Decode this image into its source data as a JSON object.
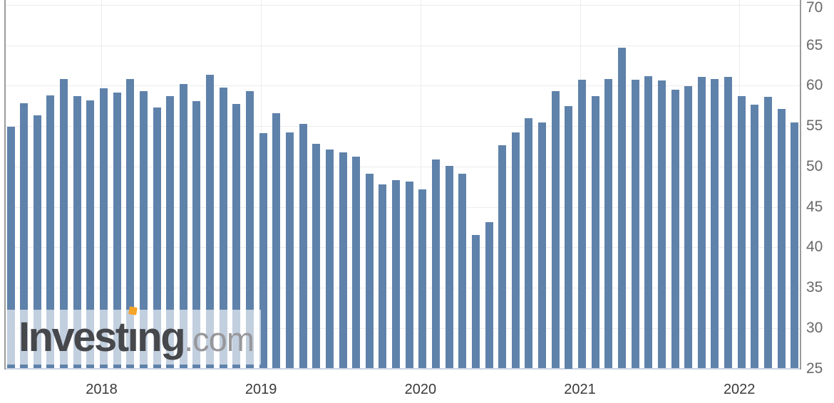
{
  "watermark": {
    "logo_text_before_i": "Invest",
    "logo_dotless_i": "ı",
    "logo_text_after_i": "ng",
    "logo_suffix": ".com",
    "logo_dot_color": "#f5a427"
  },
  "chart_data": {
    "type": "bar",
    "title": "",
    "xlabel": "",
    "ylabel": "",
    "ylim": [
      25,
      70
    ],
    "grid": true,
    "legend": "none",
    "bar_color": "#5f82ab",
    "values": [
      54.9,
      57.8,
      56.3,
      58.8,
      60.8,
      58.7,
      58.2,
      59.7,
      59.1,
      60.8,
      59.3,
      57.3,
      58.7,
      60.2,
      58.1,
      61.3,
      59.8,
      57.7,
      59.3,
      54.1,
      56.6,
      54.2,
      55.3,
      52.8,
      52.1,
      51.7,
      51.2,
      49.1,
      47.8,
      48.3,
      48.1,
      47.2,
      50.9,
      50.1,
      49.1,
      41.5,
      43.1,
      52.6,
      54.2,
      56.0,
      55.4,
      59.3,
      57.5,
      60.7,
      58.7,
      60.8,
      64.7,
      60.7,
      61.2,
      60.6,
      59.5,
      59.9,
      61.1,
      60.8,
      61.1,
      58.7,
      57.6,
      58.6,
      57.1,
      55.4
    ],
    "y_tick_labels": [
      "70",
      "65",
      "60",
      "55",
      "50",
      "45",
      "40",
      "35",
      "30",
      "25"
    ],
    "x_ticks": [
      {
        "label": "2018",
        "bar_index": 7
      },
      {
        "label": "2019",
        "bar_index": 19
      },
      {
        "label": "2020",
        "bar_index": 31
      },
      {
        "label": "2021",
        "bar_index": 43
      },
      {
        "label": "2022",
        "bar_index": 55
      }
    ]
  }
}
